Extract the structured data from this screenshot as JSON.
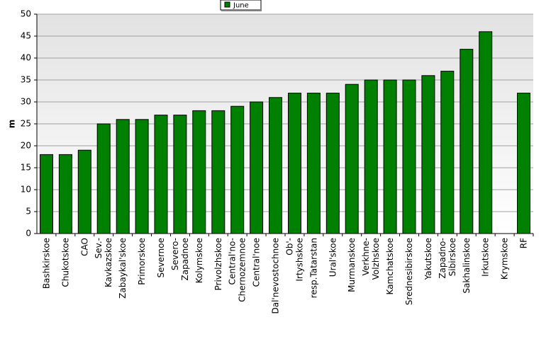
{
  "chart_data": {
    "type": "bar",
    "legend_position": "top-center",
    "grid": true,
    "ylabel": "m",
    "ylim": [
      0,
      50
    ],
    "yticks": [
      0,
      5,
      10,
      15,
      20,
      25,
      30,
      35,
      40,
      45,
      50
    ],
    "series": [
      {
        "name": "June",
        "color": "#008000"
      }
    ],
    "categories": [
      {
        "label": [
          "Bashkirskoe"
        ],
        "value": 18
      },
      {
        "label": [
          "Chukotskoe"
        ],
        "value": 18
      },
      {
        "label": [
          "CAO"
        ],
        "value": 19
      },
      {
        "label": [
          "Sev.-",
          "Kavkazskoe"
        ],
        "value": 25
      },
      {
        "label": [
          "Zabaykal'skoe"
        ],
        "value": 26
      },
      {
        "label": [
          "Primorskoe"
        ],
        "value": 26
      },
      {
        "label": [
          "Severnoe"
        ],
        "value": 27
      },
      {
        "label": [
          "Severo-",
          "Zapadnoe"
        ],
        "value": 27
      },
      {
        "label": [
          "Kolymskoe"
        ],
        "value": 28
      },
      {
        "label": [
          "Privolzhskoe"
        ],
        "value": 28
      },
      {
        "label": [
          "Central'no-",
          "Chernozemnoe"
        ],
        "value": 29
      },
      {
        "label": [
          "Central'noe"
        ],
        "value": 30
      },
      {
        "label": [
          "Dal'nevostochnoe"
        ],
        "value": 31
      },
      {
        "label": [
          "Ob'-",
          "Irtyshskoe"
        ],
        "value": 32
      },
      {
        "label": [
          "resp.Tatarstan"
        ],
        "value": 32
      },
      {
        "label": [
          "Ural'skoe"
        ],
        "value": 32
      },
      {
        "label": [
          "Murmanskoe"
        ],
        "value": 34
      },
      {
        "label": [
          "Verkhne-",
          "Volzhskoe"
        ],
        "value": 35
      },
      {
        "label": [
          "Kamchatskoe"
        ],
        "value": 35
      },
      {
        "label": [
          "Srednesibirskoe"
        ],
        "value": 35
      },
      {
        "label": [
          "Yakutskoe"
        ],
        "value": 36
      },
      {
        "label": [
          "Zapadno-",
          "Sibirskoe"
        ],
        "value": 37
      },
      {
        "label": [
          "Sakhalinskoe"
        ],
        "value": 42
      },
      {
        "label": [
          "Irkutskoe"
        ],
        "value": 46
      },
      {
        "label": [
          "Krymskoe"
        ],
        "value": null
      },
      {
        "label": [
          "RF"
        ],
        "value": 32
      }
    ]
  }
}
